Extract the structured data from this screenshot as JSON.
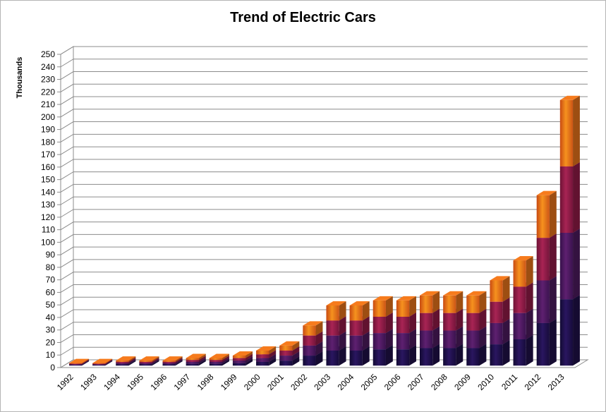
{
  "chart_data": {
    "type": "bar",
    "stacked": true,
    "style": "3d-column",
    "title": "Trend of Electric Cars",
    "ylabel": "Thousands",
    "xlabel": "",
    "ylim": [
      0,
      250
    ],
    "ytick_step": 10,
    "grid": true,
    "legend": "none",
    "categories": [
      "1992",
      "1993",
      "1994",
      "1995",
      "1996",
      "1997",
      "1998",
      "1999",
      "2000",
      "2001",
      "2002",
      "2003",
      "2004",
      "2005",
      "2006",
      "2007",
      "2008",
      "2009",
      "2010",
      "2011",
      "2012",
      "2013"
    ],
    "series": [
      {
        "color": "#1e0f46",
        "values": [
          0.5,
          0.5,
          1,
          1,
          1,
          1.5,
          1.5,
          2,
          3,
          4,
          8,
          12,
          12,
          13,
          13,
          14,
          14,
          14,
          17,
          21,
          34,
          53
        ]
      },
      {
        "color": "#4a1a5c",
        "values": [
          0.5,
          0.5,
          1,
          1,
          1,
          1.5,
          1.5,
          2,
          3,
          4,
          8,
          12,
          12,
          13,
          13,
          14,
          14,
          14,
          17,
          21,
          34,
          53
        ]
      },
      {
        "color": "#8c1a45",
        "values": [
          0.5,
          0.5,
          1,
          1,
          1,
          1.5,
          1.5,
          2,
          3,
          4,
          8,
          12,
          12,
          13,
          13,
          14,
          14,
          14,
          17,
          21,
          34,
          53
        ]
      },
      {
        "color": "#e0701a",
        "values": [
          0.5,
          0.5,
          1,
          1,
          1,
          1.5,
          1.5,
          2,
          3,
          4,
          8,
          12,
          12,
          13,
          13,
          14,
          14,
          14,
          17,
          21,
          34,
          53
        ]
      }
    ]
  }
}
